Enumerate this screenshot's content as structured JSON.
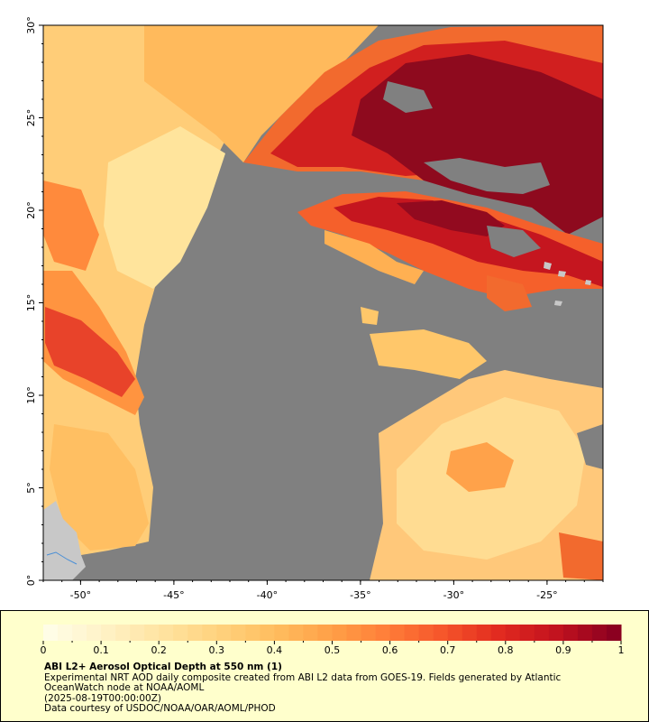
{
  "map": {
    "x_ticks": [
      "-50°",
      "-45°",
      "-40°",
      "-35°",
      "-30°",
      "-25°"
    ],
    "y_ticks": [
      "30°",
      "25°",
      "20°",
      "15°",
      "10°",
      "5°",
      "0°"
    ],
    "lon_range": [
      -52,
      -22
    ],
    "lat_range": [
      0,
      30
    ],
    "colors": {
      "no_data": "#808080",
      "land": "#c8c8c8",
      "coast": "#4a8fd6"
    }
  },
  "legend": {
    "ticks": [
      "0",
      "0.1",
      "0.2",
      "0.3",
      "0.4",
      "0.5",
      "0.6",
      "0.7",
      "0.8",
      "0.9",
      "1"
    ],
    "title": "ABI L2+ Aerosol Optical Depth at 550 nm (1)",
    "line1": "Experimental NRT AOD daily composite created from ABI L2 data from GOES-19. Fields generated by Atlantic",
    "line2": "OceanWatch node at NOAA/AOML",
    "line3": "(2025-08-19T00:00:00Z)",
    "line4": "Data courtesy of USDOC/NOAA/OAR/AOML/PHOD",
    "colorscale": [
      "#fffde6",
      "#fff1c4",
      "#ffe3a0",
      "#ffd27d",
      "#ffbd5e",
      "#ff9f47",
      "#ff7c38",
      "#f5542a",
      "#e1291f",
      "#c1121f",
      "#8b0020"
    ]
  }
}
